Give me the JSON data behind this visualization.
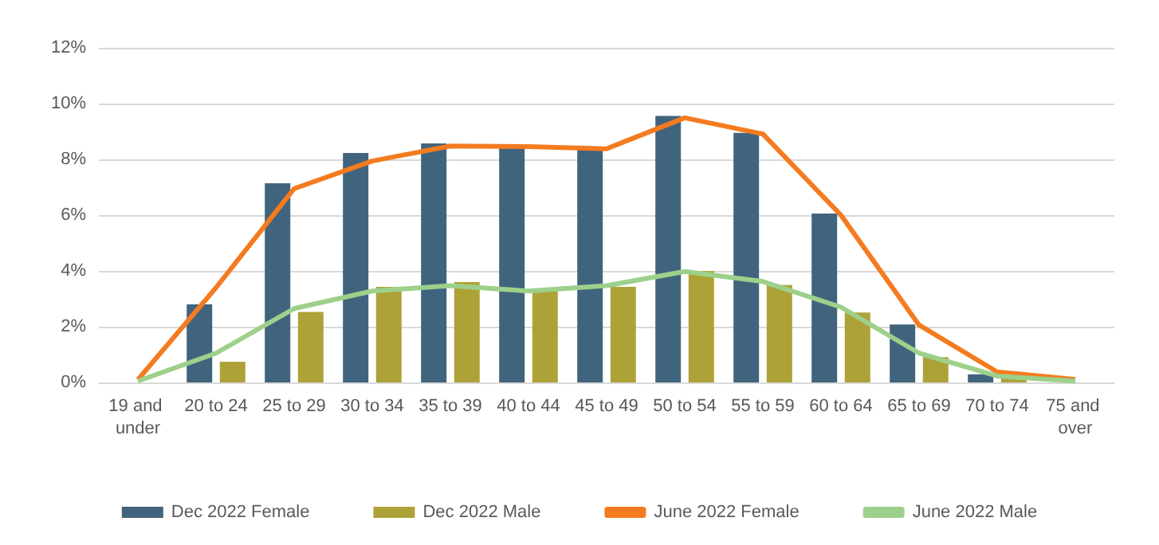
{
  "chart_data": {
    "type": "bar",
    "categories": [
      "19 and under",
      "20 to 24",
      "25 to 29",
      "30 to 34",
      "35 to 39",
      "40 to 44",
      "45 to 49",
      "50 to 54",
      "55 to 59",
      "60 to 64",
      "65 to 69",
      "70 to 74",
      "75 and over"
    ],
    "series": [
      {
        "name": "Dec 2022 Female",
        "color": "#41647e",
        "values": [
          null,
          2.8,
          7.14,
          8.23,
          8.57,
          8.42,
          8.34,
          9.56,
          8.95,
          6.06,
          2.08,
          0.29,
          null
        ]
      },
      {
        "name": "Dec 2022 Male",
        "color": "#ada238",
        "values": [
          null,
          0.74,
          2.53,
          3.43,
          3.6,
          3.3,
          3.43,
          4.0,
          3.49,
          2.51,
          0.91,
          0.19,
          null
        ]
      },
      {
        "name": "June 2022 Female",
        "type": "line",
        "color": "#f47b20",
        "values": [
          0.1,
          3.4,
          6.95,
          7.94,
          8.48,
          8.46,
          8.38,
          9.49,
          8.91,
          6.0,
          2.06,
          0.38,
          0.11
        ]
      },
      {
        "name": "June 2022 Male",
        "type": "line",
        "color": "#9dd08a",
        "values": [
          0.05,
          1.05,
          2.65,
          3.28,
          3.47,
          3.28,
          3.47,
          3.98,
          3.62,
          2.7,
          1.05,
          0.23,
          0.05
        ]
      }
    ],
    "ylim": [
      0,
      12
    ],
    "yticks": [
      {
        "value": 0,
        "label": "0%"
      },
      {
        "value": 2,
        "label": "2%"
      },
      {
        "value": 4,
        "label": "4%"
      },
      {
        "value": 6,
        "label": "6%"
      },
      {
        "value": 8,
        "label": "8%"
      },
      {
        "value": 10,
        "label": "10%"
      },
      {
        "value": 12,
        "label": "12%"
      }
    ],
    "grid": "y",
    "legend": "bottom",
    "marker": "none",
    "line_style": "solid"
  }
}
